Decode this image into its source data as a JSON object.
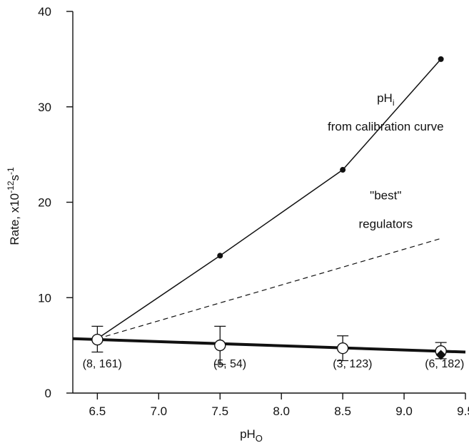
{
  "chart_data": {
    "type": "line",
    "xlabel": "pH",
    "xlabel_sub": "O",
    "ylabel": "Rate, x10",
    "ylabel_exp": "-12",
    "ylabel_unit": "s",
    "ylabel_unit_exp": "-1",
    "xlim": [
      6.3,
      9.5
    ],
    "ylim": [
      0,
      40
    ],
    "xticks": [
      6.5,
      7.0,
      7.5,
      8.0,
      8.5,
      9.0,
      9.5
    ],
    "xtick_labels": [
      "6.5",
      "7.0",
      "7.5",
      "8.0",
      "8.5",
      "9.0",
      "9.5"
    ],
    "yticks": [
      0,
      10,
      20,
      30,
      40
    ],
    "ytick_labels": [
      "0",
      "10",
      "20",
      "30",
      "40"
    ],
    "series": [
      {
        "style": "solid-thin",
        "marker": "filled-dot",
        "x": [
          6.5,
          7.5,
          8.5,
          9.3
        ],
        "y": [
          5.7,
          14.4,
          23.4,
          35.0
        ]
      },
      {
        "style": "dashed",
        "marker": "none",
        "x": [
          6.5,
          9.3
        ],
        "y": [
          5.7,
          16.2
        ]
      },
      {
        "style": "solid-thick",
        "marker": "none",
        "x": [
          6.3,
          9.5
        ],
        "y": [
          5.7,
          4.3
        ]
      },
      {
        "style": "points",
        "marker": "open-circle",
        "x": [
          6.5,
          7.5,
          8.5,
          9.3
        ],
        "y": [
          5.6,
          5.0,
          4.7,
          4.4
        ],
        "err_low": [
          4.3,
          3.0,
          3.4,
          3.6
        ],
        "err_high": [
          7.0,
          7.0,
          6.0,
          5.3
        ]
      },
      {
        "style": "points",
        "marker": "filled-diamond",
        "x": [
          9.3
        ],
        "y": [
          4.0
        ]
      }
    ],
    "annotations": [
      {
        "key": "phi",
        "text": "pH",
        "sub": "i",
        "x": 8.85,
        "y": 30.5
      },
      {
        "key": "calib",
        "text": "from calibration curve",
        "x": 8.85,
        "y": 27.5
      },
      {
        "key": "best",
        "text": "\"best\"",
        "x": 8.85,
        "y": 20.3
      },
      {
        "key": "regulators",
        "text": "regulators",
        "x": 8.85,
        "y": 17.3
      }
    ],
    "point_labels": [
      {
        "text": "(8, 161)",
        "x": 6.54,
        "y": 2.7
      },
      {
        "text": "(5, 54)",
        "x": 7.58,
        "y": 2.7
      },
      {
        "text": "(3, 123)",
        "x": 8.58,
        "y": 2.7
      },
      {
        "text": "(6, 182)",
        "x": 9.33,
        "y": 2.7
      }
    ],
    "grid": false,
    "legend": "none"
  }
}
